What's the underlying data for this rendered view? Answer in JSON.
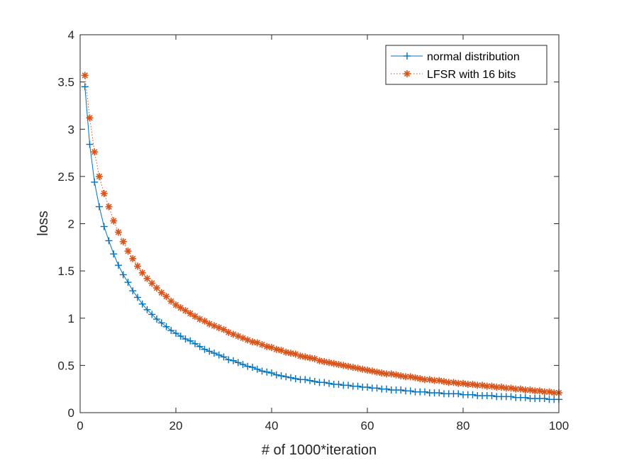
{
  "chart_data": {
    "type": "line",
    "title": "",
    "xlabel": "# of 1000*iteration",
    "ylabel": "loss",
    "xlim": [
      0,
      100
    ],
    "ylim": [
      0,
      4
    ],
    "xticks": [
      "0",
      "20",
      "40",
      "60",
      "80",
      "100"
    ],
    "yticks": [
      "0",
      "0.5",
      "1",
      "1.5",
      "2",
      "2.5",
      "3",
      "3.5",
      "4"
    ],
    "grid": false,
    "legend_position": "top-right",
    "x": [
      1,
      2,
      3,
      4,
      5,
      6,
      7,
      8,
      9,
      10,
      11,
      12,
      13,
      14,
      15,
      16,
      17,
      18,
      19,
      20,
      21,
      22,
      23,
      24,
      25,
      26,
      27,
      28,
      29,
      30,
      31,
      32,
      33,
      34,
      35,
      36,
      37,
      38,
      39,
      40,
      41,
      42,
      43,
      44,
      45,
      46,
      47,
      48,
      49,
      50,
      51,
      52,
      53,
      54,
      55,
      56,
      57,
      58,
      59,
      60,
      61,
      62,
      63,
      64,
      65,
      66,
      67,
      68,
      69,
      70,
      71,
      72,
      73,
      74,
      75,
      76,
      77,
      78,
      79,
      80,
      81,
      82,
      83,
      84,
      85,
      86,
      87,
      88,
      89,
      90,
      91,
      92,
      93,
      94,
      95,
      96,
      97,
      98,
      99,
      100
    ],
    "series": [
      {
        "name": "normal distribution",
        "color": "#0072bd",
        "line": "solid",
        "marker": "plus",
        "values": [
          3.45,
          2.84,
          2.44,
          2.18,
          1.97,
          1.82,
          1.68,
          1.56,
          1.46,
          1.38,
          1.29,
          1.22,
          1.15,
          1.09,
          1.04,
          0.99,
          0.95,
          0.91,
          0.87,
          0.84,
          0.81,
          0.78,
          0.76,
          0.73,
          0.7,
          0.67,
          0.65,
          0.63,
          0.61,
          0.59,
          0.56,
          0.55,
          0.53,
          0.51,
          0.49,
          0.48,
          0.46,
          0.44,
          0.43,
          0.42,
          0.4,
          0.39,
          0.38,
          0.37,
          0.36,
          0.35,
          0.35,
          0.34,
          0.33,
          0.32,
          0.32,
          0.31,
          0.3,
          0.3,
          0.29,
          0.29,
          0.28,
          0.28,
          0.27,
          0.27,
          0.26,
          0.26,
          0.25,
          0.25,
          0.24,
          0.24,
          0.24,
          0.23,
          0.23,
          0.22,
          0.22,
          0.22,
          0.21,
          0.21,
          0.21,
          0.2,
          0.2,
          0.2,
          0.2,
          0.19,
          0.19,
          0.19,
          0.18,
          0.18,
          0.18,
          0.18,
          0.17,
          0.17,
          0.17,
          0.17,
          0.16,
          0.16,
          0.16,
          0.15,
          0.15,
          0.15,
          0.15,
          0.14,
          0.14,
          0.14
        ]
      },
      {
        "name": "LFSR with 16 bits",
        "color": "#d95319",
        "line": "dotted",
        "marker": "asterisk",
        "values": [
          3.57,
          3.12,
          2.76,
          2.5,
          2.32,
          2.18,
          2.03,
          1.91,
          1.81,
          1.71,
          1.63,
          1.55,
          1.48,
          1.42,
          1.37,
          1.32,
          1.27,
          1.23,
          1.18,
          1.14,
          1.11,
          1.08,
          1.05,
          1.02,
          0.99,
          0.97,
          0.94,
          0.92,
          0.9,
          0.88,
          0.85,
          0.83,
          0.81,
          0.79,
          0.77,
          0.75,
          0.74,
          0.72,
          0.7,
          0.69,
          0.67,
          0.66,
          0.64,
          0.63,
          0.62,
          0.6,
          0.59,
          0.58,
          0.57,
          0.55,
          0.54,
          0.53,
          0.52,
          0.51,
          0.5,
          0.49,
          0.48,
          0.47,
          0.46,
          0.45,
          0.44,
          0.43,
          0.42,
          0.41,
          0.41,
          0.4,
          0.39,
          0.38,
          0.38,
          0.37,
          0.36,
          0.35,
          0.35,
          0.34,
          0.34,
          0.33,
          0.32,
          0.32,
          0.31,
          0.31,
          0.3,
          0.3,
          0.29,
          0.29,
          0.28,
          0.28,
          0.27,
          0.27,
          0.26,
          0.26,
          0.25,
          0.25,
          0.24,
          0.24,
          0.23,
          0.23,
          0.22,
          0.22,
          0.21,
          0.21
        ]
      }
    ]
  }
}
